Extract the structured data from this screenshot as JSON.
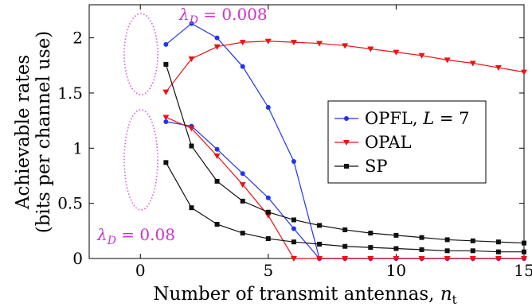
{
  "chart_data": {
    "type": "line",
    "xlabel": "Number of transmit antennas, n_t",
    "ylabel": [
      "Achievable rates",
      "(bits per channel use)"
    ],
    "xlim": [
      -2,
      15
    ],
    "ylim": [
      0,
      2.3
    ],
    "xticks": [
      0,
      5,
      10,
      15
    ],
    "yticks": [
      0,
      0.5,
      1,
      1.5,
      2
    ],
    "ytick_labels": [
      "0",
      "0.5",
      "1",
      "1.5",
      "2"
    ],
    "grid": false,
    "legend_placement": "center-right",
    "annotations": [
      {
        "text": "λD = 0.008",
        "target": "upper curve group"
      },
      {
        "text": "λD = 0.08",
        "target": "lower curve group"
      }
    ],
    "series": [
      {
        "name": "OPFL, L = 7",
        "color": "#2233ee",
        "marker": "circle",
        "group": "λD = 0.008",
        "x": [
          1,
          2,
          3,
          4,
          5,
          6,
          7,
          8,
          9,
          10,
          11,
          12,
          13,
          14,
          15
        ],
        "y": [
          1.94,
          2.13,
          2.0,
          1.74,
          1.37,
          0.88,
          0,
          0,
          0,
          0,
          0,
          0,
          0,
          0,
          0
        ]
      },
      {
        "name": "OPFL, L = 7",
        "color": "#2233ee",
        "marker": "circle",
        "group": "λD = 0.08",
        "x": [
          1,
          2,
          3,
          4,
          5,
          6,
          7,
          8,
          9,
          10,
          11,
          12,
          13,
          14,
          15
        ],
        "y": [
          1.24,
          1.2,
          0.99,
          0.77,
          0.55,
          0.27,
          0,
          0,
          0,
          0,
          0,
          0,
          0,
          0,
          0
        ]
      },
      {
        "name": "OPAL",
        "color": "#ee1111",
        "marker": "triangle-down",
        "group": "λD = 0.008",
        "x": [
          1,
          2,
          3,
          4,
          5,
          6,
          7,
          8,
          9,
          10,
          11,
          12,
          13,
          14,
          15
        ],
        "y": [
          1.51,
          1.81,
          1.92,
          1.96,
          1.97,
          1.96,
          1.95,
          1.93,
          1.9,
          1.87,
          1.84,
          1.8,
          1.77,
          1.73,
          1.69
        ]
      },
      {
        "name": "OPAL",
        "color": "#ee1111",
        "marker": "triangle-down",
        "group": "λD = 0.08",
        "x": [
          1,
          2,
          3,
          4,
          5,
          6,
          7,
          8,
          9,
          10,
          11,
          12,
          13,
          14,
          15
        ],
        "y": [
          1.28,
          1.18,
          0.93,
          0.67,
          0.39,
          0,
          0,
          0,
          0,
          0,
          0,
          0,
          0,
          0,
          0
        ]
      },
      {
        "name": "SP",
        "color": "#111111",
        "marker": "square",
        "group": "λD = 0.008",
        "x": [
          1,
          2,
          3,
          4,
          5,
          6,
          7,
          8,
          9,
          10,
          11,
          12,
          13,
          14,
          15
        ],
        "y": [
          1.76,
          1.02,
          0.7,
          0.52,
          0.42,
          0.35,
          0.3,
          0.26,
          0.23,
          0.21,
          0.19,
          0.17,
          0.16,
          0.15,
          0.14
        ]
      },
      {
        "name": "SP",
        "color": "#111111",
        "marker": "square",
        "group": "λD = 0.08",
        "x": [
          1,
          2,
          3,
          4,
          5,
          6,
          7,
          8,
          9,
          10,
          11,
          12,
          13,
          14,
          15
        ],
        "y": [
          0.87,
          0.46,
          0.31,
          0.23,
          0.18,
          0.15,
          0.13,
          0.11,
          0.1,
          0.09,
          0.08,
          0.07,
          0.07,
          0.06,
          0.06
        ]
      }
    ],
    "legend": [
      {
        "label": "OPFL, L = 7",
        "color": "#2233ee",
        "marker": "circle"
      },
      {
        "label": "OPAL",
        "color": "#ee1111",
        "marker": "triangle-down"
      },
      {
        "label": "SP",
        "color": "#111111",
        "marker": "square"
      }
    ]
  }
}
